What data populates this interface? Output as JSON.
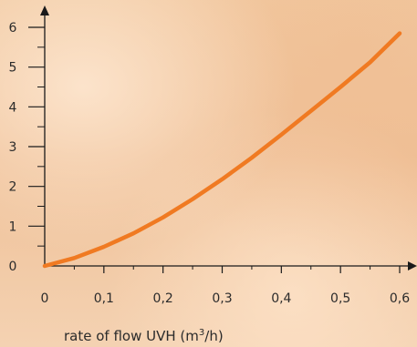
{
  "chart_data": {
    "type": "line",
    "title": "",
    "xlabel_main": "rate of flow UVH (m",
    "xlabel_sup": "3",
    "xlabel_end": "/h)",
    "ylabel": "",
    "xlim": [
      0,
      0.6
    ],
    "ylim": [
      0,
      6
    ],
    "x_ticks": [
      "0",
      "0,1",
      "0,2",
      "0,3",
      "0,4",
      "0,5",
      "0,6"
    ],
    "x_tick_values": [
      0,
      0.1,
      0.2,
      0.3,
      0.4,
      0.5,
      0.6
    ],
    "y_ticks": [
      "0",
      "1",
      "2",
      "3",
      "4",
      "5",
      "6"
    ],
    "y_tick_values": [
      0,
      1,
      2,
      3,
      4,
      5,
      6
    ],
    "grid": false,
    "colors": {
      "line": "#f07a22",
      "axis": "#1a1a1a"
    },
    "series": [
      {
        "x": [
          0,
          0.05,
          0.1,
          0.15,
          0.2,
          0.25,
          0.3,
          0.35,
          0.4,
          0.45,
          0.5,
          0.55,
          0.6
        ],
        "y": [
          0,
          0.2,
          0.48,
          0.82,
          1.22,
          1.68,
          2.18,
          2.72,
          3.3,
          3.9,
          4.5,
          5.12,
          5.85
        ]
      }
    ]
  }
}
